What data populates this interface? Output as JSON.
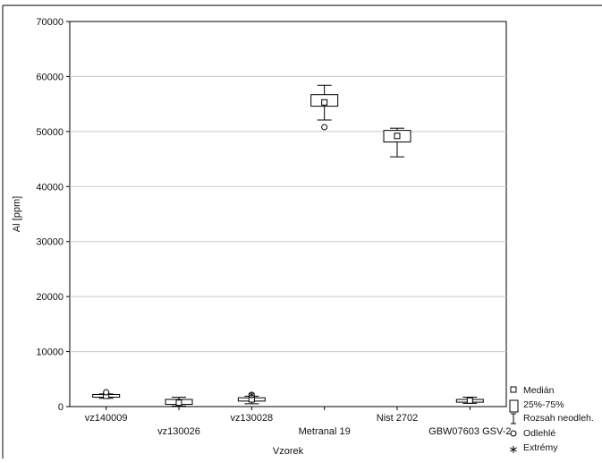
{
  "chart_data": {
    "type": "boxplot",
    "xlabel": "Vzorek",
    "ylabel": "Al [ppm]",
    "ylim": [
      0,
      70000
    ],
    "yticks": [
      0,
      10000,
      20000,
      30000,
      40000,
      50000,
      60000,
      70000
    ],
    "ytick_labels": [
      "0",
      "10000",
      "20000",
      "30000",
      "40000",
      "50000",
      "60000",
      "70000"
    ],
    "grid": true,
    "legend_position": "bottom-right",
    "categories": [
      "vz140009",
      "vz130026",
      "vz130028",
      "Metranal 19",
      "Nist 2702",
      "GBW07603 GSV-2"
    ],
    "boxes": [
      {
        "category": "vz140009",
        "median": 1950,
        "q1": 1700,
        "q3": 2200,
        "whisker_low": 1500,
        "whisker_high": 2300,
        "outliers": [
          2600
        ],
        "extremes": []
      },
      {
        "category": "vz130026",
        "median": 700,
        "q1": 400,
        "q3": 1300,
        "whisker_low": 100,
        "whisker_high": 1700,
        "outliers": [],
        "extremes": []
      },
      {
        "category": "vz130028",
        "median": 1300,
        "q1": 1000,
        "q3": 1600,
        "whisker_low": 500,
        "whisker_high": 1900,
        "outliers": [
          2100
        ],
        "extremes": [
          2400
        ]
      },
      {
        "category": "Metranal 19",
        "median": 55300,
        "q1": 54600,
        "q3": 56700,
        "whisker_low": 52100,
        "whisker_high": 58400,
        "outliers": [
          50800
        ],
        "extremes": []
      },
      {
        "category": "Nist 2702",
        "median": 49200,
        "q1": 48100,
        "q3": 50200,
        "whisker_low": 45400,
        "whisker_high": 50600,
        "outliers": [],
        "extremes": []
      },
      {
        "category": "GBW07603 GSV-2",
        "median": 1100,
        "q1": 800,
        "q3": 1300,
        "whisker_low": 600,
        "whisker_high": 1700,
        "outliers": [],
        "extremes": []
      }
    ],
    "legend": {
      "median": "Medián",
      "box": "25%-75%",
      "whisker": "Rozsah neodleh.",
      "outlier": "Odlehlé",
      "extreme": "Extrémy"
    }
  }
}
